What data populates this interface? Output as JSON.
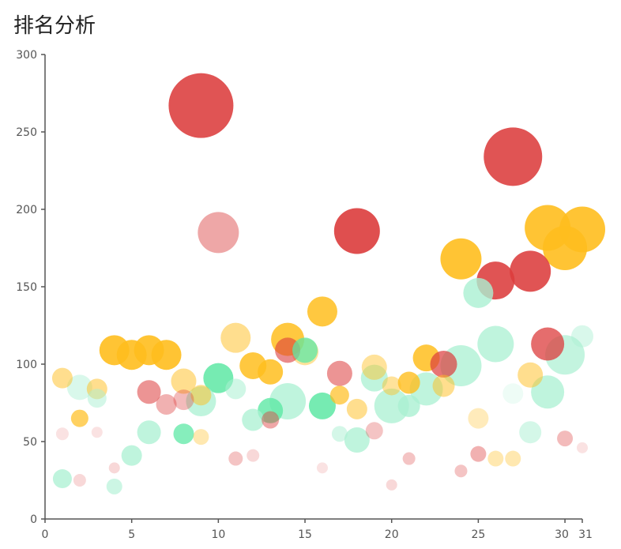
{
  "chart_data": {
    "type": "scatter",
    "title": "排名分析",
    "xlabel": "",
    "ylabel": "",
    "xlim": [
      0,
      31
    ],
    "ylim": [
      0,
      300
    ],
    "x_ticks": [
      0,
      5,
      10,
      15,
      20,
      25,
      30,
      31
    ],
    "y_ticks": [
      0,
      50,
      100,
      150,
      200,
      250,
      300
    ],
    "grid": false,
    "colors": {
      "red": "#dc3c3c",
      "pink": "#e88a8a",
      "yellow": "#ffbe1e",
      "green": "#5ee8a5",
      "mint": "#aaf0d2"
    },
    "points": [
      {
        "x": 9,
        "y": 267,
        "r": 41,
        "c": "red",
        "o": 0.88
      },
      {
        "x": 10,
        "y": 185,
        "r": 26,
        "c": "pink",
        "o": 0.75
      },
      {
        "x": 18,
        "y": 186,
        "r": 29,
        "c": "red",
        "o": 0.9
      },
      {
        "x": 27,
        "y": 234,
        "r": 37,
        "c": "red",
        "o": 0.88
      },
      {
        "x": 28,
        "y": 160,
        "r": 26,
        "c": "red",
        "o": 0.88
      },
      {
        "x": 26,
        "y": 154,
        "r": 24,
        "c": "red",
        "o": 0.88
      },
      {
        "x": 29,
        "y": 113,
        "r": 21,
        "c": "red",
        "o": 0.75
      },
      {
        "x": 29,
        "y": 188,
        "r": 29,
        "c": "yellow",
        "o": 0.9
      },
      {
        "x": 31,
        "y": 187,
        "r": 29,
        "c": "yellow",
        "o": 0.9
      },
      {
        "x": 30,
        "y": 175,
        "r": 28,
        "c": "yellow",
        "o": 0.9
      },
      {
        "x": 24,
        "y": 168,
        "r": 26,
        "c": "yellow",
        "o": 0.9
      },
      {
        "x": 16,
        "y": 134,
        "r": 19,
        "c": "yellow",
        "o": 0.85
      },
      {
        "x": 4,
        "y": 109,
        "r": 19,
        "c": "yellow",
        "o": 0.9
      },
      {
        "x": 5,
        "y": 106,
        "r": 19,
        "c": "yellow",
        "o": 0.9
      },
      {
        "x": 6,
        "y": 109,
        "r": 19,
        "c": "yellow",
        "o": 0.9
      },
      {
        "x": 7,
        "y": 106,
        "r": 19,
        "c": "yellow",
        "o": 0.9
      },
      {
        "x": 11,
        "y": 117,
        "r": 19,
        "c": "yellow",
        "o": 0.5
      },
      {
        "x": 14,
        "y": 116,
        "r": 21,
        "c": "yellow",
        "o": 0.85
      },
      {
        "x": 12,
        "y": 99,
        "r": 17,
        "c": "yellow",
        "o": 0.85
      },
      {
        "x": 13,
        "y": 95,
        "r": 16,
        "c": "yellow",
        "o": 0.85
      },
      {
        "x": 22,
        "y": 104,
        "r": 17,
        "c": "yellow",
        "o": 0.85
      },
      {
        "x": 23,
        "y": 100,
        "r": 17,
        "c": "red",
        "o": 0.7
      },
      {
        "x": 19,
        "y": 98,
        "r": 16,
        "c": "yellow",
        "o": 0.45
      },
      {
        "x": 28,
        "y": 93,
        "r": 16,
        "c": "yellow",
        "o": 0.5
      },
      {
        "x": 21,
        "y": 88,
        "r": 14,
        "c": "yellow",
        "o": 0.8
      },
      {
        "x": 20,
        "y": 86,
        "r": 12,
        "c": "yellow",
        "o": 0.45
      },
      {
        "x": 23,
        "y": 86,
        "r": 14,
        "c": "yellow",
        "o": 0.5
      },
      {
        "x": 1,
        "y": 91,
        "r": 13,
        "c": "yellow",
        "o": 0.5
      },
      {
        "x": 3,
        "y": 84,
        "r": 13,
        "c": "yellow",
        "o": 0.5
      },
      {
        "x": 8,
        "y": 89,
        "r": 16,
        "c": "yellow",
        "o": 0.5
      },
      {
        "x": 9,
        "y": 80,
        "r": 13,
        "c": "yellow",
        "o": 0.5
      },
      {
        "x": 17,
        "y": 80,
        "r": 12,
        "c": "yellow",
        "o": 0.7
      },
      {
        "x": 18,
        "y": 71,
        "r": 13,
        "c": "yellow",
        "o": 0.5
      },
      {
        "x": 25,
        "y": 65,
        "r": 13,
        "c": "yellow",
        "o": 0.3
      },
      {
        "x": 2,
        "y": 65,
        "r": 11,
        "c": "yellow",
        "o": 0.7
      },
      {
        "x": 9,
        "y": 53,
        "r": 10,
        "c": "yellow",
        "o": 0.35
      },
      {
        "x": 26,
        "y": 39,
        "r": 10,
        "c": "yellow",
        "o": 0.35
      },
      {
        "x": 27,
        "y": 39,
        "r": 10,
        "c": "yellow",
        "o": 0.35
      },
      {
        "x": 14,
        "y": 109,
        "r": 16,
        "c": "red",
        "o": 0.6
      },
      {
        "x": 17,
        "y": 94,
        "r": 16,
        "c": "red",
        "o": 0.55
      },
      {
        "x": 6,
        "y": 82,
        "r": 15,
        "c": "red",
        "o": 0.55
      },
      {
        "x": 7,
        "y": 74,
        "r": 13,
        "c": "red",
        "o": 0.4
      },
      {
        "x": 8,
        "y": 77,
        "r": 13,
        "c": "red",
        "o": 0.35
      },
      {
        "x": 13,
        "y": 64,
        "r": 11,
        "c": "red",
        "o": 0.45
      },
      {
        "x": 19,
        "y": 57,
        "r": 11,
        "c": "red",
        "o": 0.3
      },
      {
        "x": 25,
        "y": 42,
        "r": 10,
        "c": "red",
        "o": 0.4
      },
      {
        "x": 30,
        "y": 52,
        "r": 10,
        "c": "red",
        "o": 0.35
      },
      {
        "x": 11,
        "y": 39,
        "r": 9,
        "c": "red",
        "o": 0.3
      },
      {
        "x": 12,
        "y": 41,
        "r": 8,
        "c": "red",
        "o": 0.2
      },
      {
        "x": 21,
        "y": 39,
        "r": 8,
        "c": "red",
        "o": 0.3
      },
      {
        "x": 24,
        "y": 31,
        "r": 8,
        "c": "red",
        "o": 0.3
      },
      {
        "x": 4,
        "y": 33,
        "r": 7,
        "c": "red",
        "o": 0.2
      },
      {
        "x": 1,
        "y": 55,
        "r": 8,
        "c": "red",
        "o": 0.15
      },
      {
        "x": 2,
        "y": 25,
        "r": 8,
        "c": "red",
        "o": 0.2
      },
      {
        "x": 3,
        "y": 56,
        "r": 7,
        "c": "red",
        "o": 0.15
      },
      {
        "x": 16,
        "y": 33,
        "r": 7,
        "c": "red",
        "o": 0.15
      },
      {
        "x": 20,
        "y": 22,
        "r": 7,
        "c": "red",
        "o": 0.2
      },
      {
        "x": 31,
        "y": 46,
        "r": 7,
        "c": "red",
        "o": 0.15
      },
      {
        "x": 15,
        "y": 108,
        "r": 17,
        "c": "yellow",
        "o": 0.45
      },
      {
        "x": 15,
        "y": 109,
        "r": 16,
        "c": "green",
        "o": 0.75
      },
      {
        "x": 10,
        "y": 91,
        "r": 19,
        "c": "green",
        "o": 0.85
      },
      {
        "x": 16,
        "y": 73,
        "r": 17,
        "c": "green",
        "o": 0.85
      },
      {
        "x": 13,
        "y": 70,
        "r": 16,
        "c": "green",
        "o": 0.8
      },
      {
        "x": 8,
        "y": 55,
        "r": 13,
        "c": "green",
        "o": 0.75
      },
      {
        "x": 24,
        "y": 99,
        "r": 26,
        "c": "mint",
        "o": 0.75
      },
      {
        "x": 26,
        "y": 113,
        "r": 23,
        "c": "mint",
        "o": 0.75
      },
      {
        "x": 30,
        "y": 106,
        "r": 25,
        "c": "mint",
        "o": 0.7
      },
      {
        "x": 31,
        "y": 118,
        "r": 14,
        "c": "mint",
        "o": 0.45
      },
      {
        "x": 25,
        "y": 146,
        "r": 19,
        "c": "mint",
        "o": 0.8
      },
      {
        "x": 29,
        "y": 82,
        "r": 21,
        "c": "mint",
        "o": 0.75
      },
      {
        "x": 22,
        "y": 84,
        "r": 21,
        "c": "mint",
        "o": 0.75
      },
      {
        "x": 20,
        "y": 73,
        "r": 22,
        "c": "mint",
        "o": 0.75
      },
      {
        "x": 21,
        "y": 73,
        "r": 14,
        "c": "mint",
        "o": 0.8
      },
      {
        "x": 19,
        "y": 91,
        "r": 17,
        "c": "mint",
        "o": 0.75
      },
      {
        "x": 14,
        "y": 76,
        "r": 23,
        "c": "mint",
        "o": 0.75
      },
      {
        "x": 9,
        "y": 76,
        "r": 19,
        "c": "mint",
        "o": 0.75
      },
      {
        "x": 11,
        "y": 84,
        "r": 13,
        "c": "mint",
        "o": 0.55
      },
      {
        "x": 12,
        "y": 64,
        "r": 14,
        "c": "mint",
        "o": 0.75
      },
      {
        "x": 2,
        "y": 85,
        "r": 16,
        "c": "mint",
        "o": 0.45
      },
      {
        "x": 3,
        "y": 78,
        "r": 12,
        "c": "mint",
        "o": 0.5
      },
      {
        "x": 6,
        "y": 56,
        "r": 15,
        "c": "mint",
        "o": 0.75
      },
      {
        "x": 5,
        "y": 41,
        "r": 13,
        "c": "mint",
        "o": 0.75
      },
      {
        "x": 1,
        "y": 26,
        "r": 12,
        "c": "mint",
        "o": 0.75
      },
      {
        "x": 4,
        "y": 21,
        "r": 10,
        "c": "mint",
        "o": 0.6
      },
      {
        "x": 17,
        "y": 55,
        "r": 10,
        "c": "mint",
        "o": 0.5
      },
      {
        "x": 18,
        "y": 51,
        "r": 16,
        "c": "mint",
        "o": 0.75
      },
      {
        "x": 28,
        "y": 56,
        "r": 14,
        "c": "mint",
        "o": 0.5
      },
      {
        "x": 27,
        "y": 81,
        "r": 13,
        "c": "mint",
        "o": 0.2
      }
    ]
  }
}
